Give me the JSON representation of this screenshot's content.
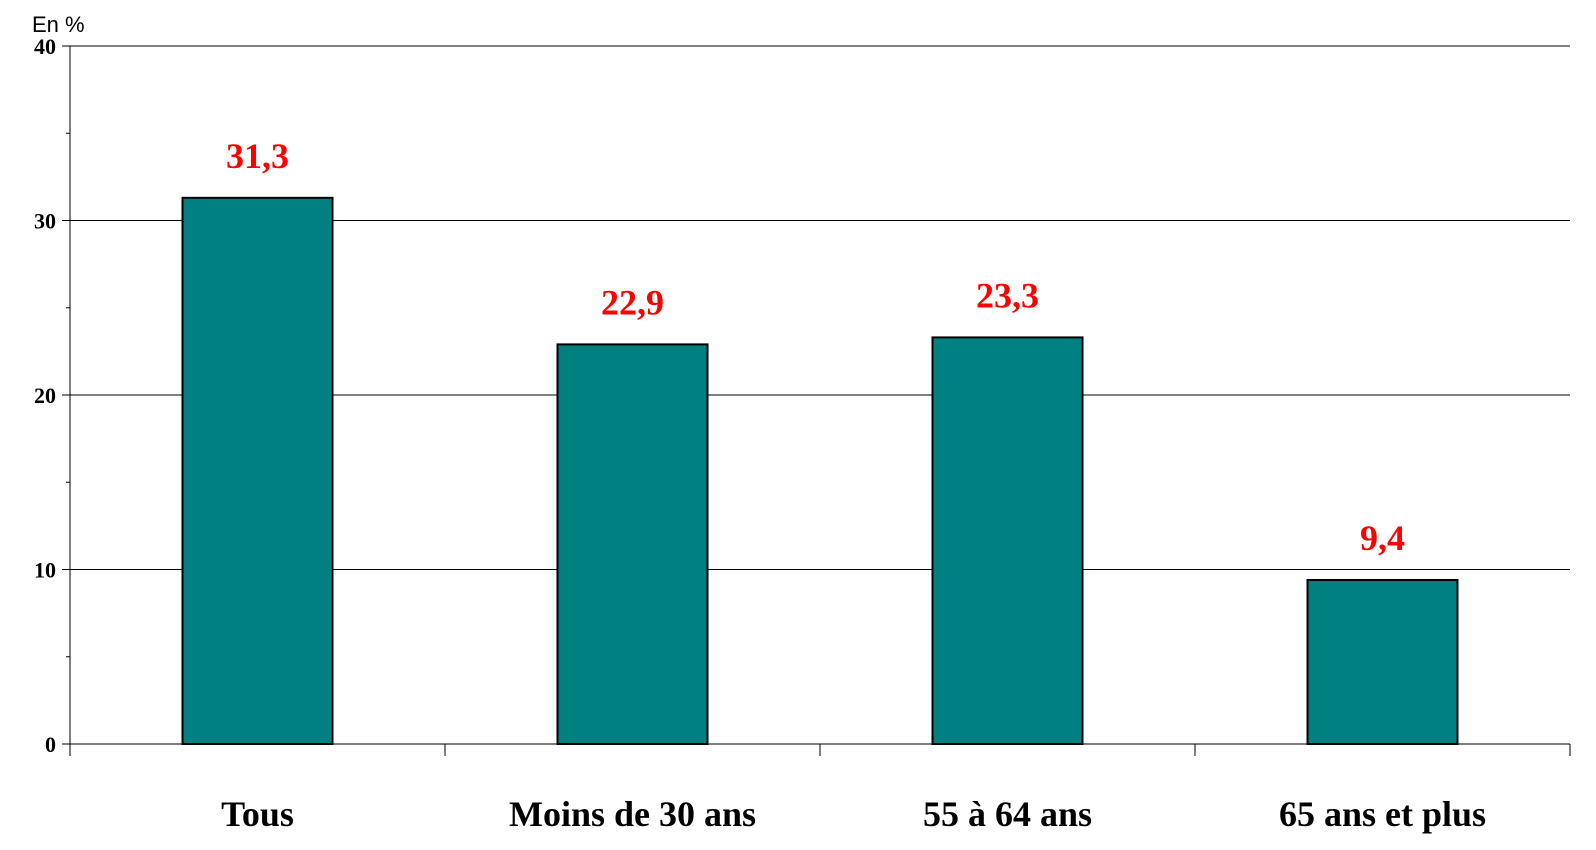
{
  "chart_data": {
    "type": "bar",
    "unit_label": "En %",
    "categories": [
      "Tous",
      "Moins de 30 ans",
      "55 à 64 ans",
      "65 ans et plus"
    ],
    "values": [
      31.3,
      22.9,
      23.3,
      9.4
    ],
    "value_labels": [
      "31,3",
      "22,9",
      "23,3",
      "9,4"
    ],
    "ylim": [
      0,
      40
    ],
    "yticks": [
      "0",
      "10",
      "20",
      "30",
      "40"
    ],
    "grid": true,
    "bar_color": "#008080",
    "label_color": "#ff0000"
  }
}
